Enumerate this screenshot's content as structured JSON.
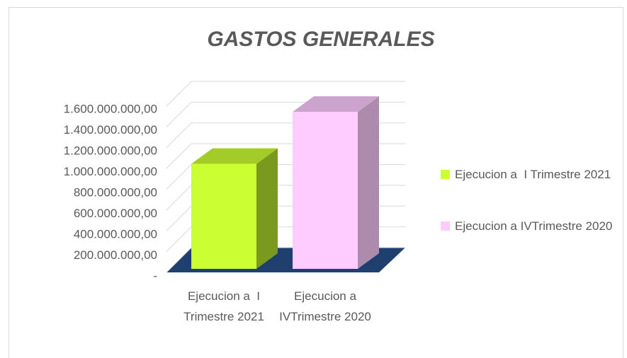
{
  "chart_data": {
    "type": "bar3d",
    "title": "GASTOS GENERALES",
    "categories": [
      "Ejecucion a  I Trimestre 2021",
      "Ejecucion a IVTrimestre 2020"
    ],
    "series": [
      {
        "name": "Ejecucion a  I Trimestre 2021",
        "color": "#ccff33",
        "values": [
          950000000,
          null
        ]
      },
      {
        "name": "Ejecucion a IVTrimestre 2020",
        "color": "#ffccff",
        "values": [
          null,
          1420000000
        ]
      }
    ],
    "ylim": [
      0,
      1600000000
    ],
    "yticks": [
      {
        "value": 0,
        "label": "-"
      },
      {
        "value": 200000000,
        "label": "200.000.000,00"
      },
      {
        "value": 400000000,
        "label": "400.000.000,00"
      },
      {
        "value": 600000000,
        "label": "600.000.000,00"
      },
      {
        "value": 800000000,
        "label": "800.000.000,00"
      },
      {
        "value": 1000000000,
        "label": "1.000.000.000,00"
      },
      {
        "value": 1200000000,
        "label": "1.200.000.000,00"
      },
      {
        "value": 1400000000,
        "label": "1.400.000.000,00"
      },
      {
        "value": 1600000000,
        "label": "1.600.000.000,00"
      }
    ],
    "grid": true,
    "legend": "right"
  }
}
